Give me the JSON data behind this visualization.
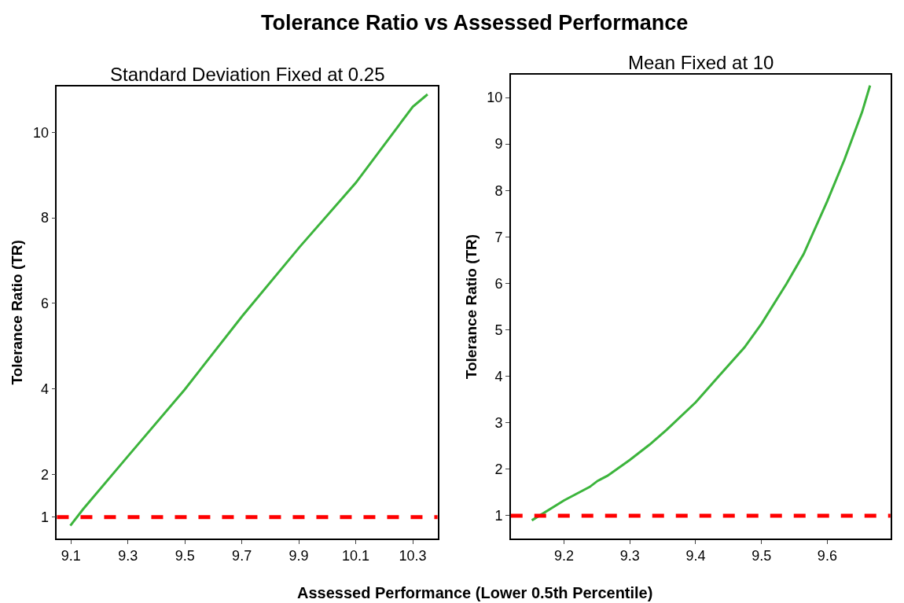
{
  "chart_data": [
    {
      "type": "line",
      "title": "Tolerance Ratio vs Assessed Performance",
      "subtitle": "Standard Deviation Fixed at 0.25",
      "xlabel": "Assessed Performance (Lower 0.5th Percentile)",
      "ylabel": "Tolerance Ratio (TR)",
      "x": [
        9.098,
        9.142,
        9.297,
        9.499,
        9.701,
        9.903,
        10.1,
        10.3,
        10.352
      ],
      "series": [
        {
          "color": "#3cb43c",
          "values": [
            0.8,
            1.18,
            2.4,
            3.98,
            5.7,
            7.32,
            8.82,
            10.6,
            10.89
          ]
        }
      ],
      "xlim": [
        9.051,
        10.387
      ],
      "xticks": [
        9.1,
        9.3,
        9.5,
        9.7,
        9.9,
        10.1,
        10.3
      ],
      "ylim": [
        0.5,
        11.08
      ],
      "yticks": [
        1,
        2,
        4,
        6,
        8,
        10
      ],
      "ref_lines": [
        {
          "axis": "y",
          "value": 1,
          "color": "#ff0000",
          "line_style": "dashed"
        }
      ],
      "marker": "none",
      "line_style": "solid"
    },
    {
      "type": "line",
      "subtitle": "Mean Fixed at 10",
      "ylabel": "Tolerance Ratio (TR)",
      "x": [
        9.151,
        9.2,
        9.239,
        9.251,
        9.266,
        9.3,
        9.33,
        9.356,
        9.4,
        9.433,
        9.474,
        9.5,
        9.538,
        9.564,
        9.6,
        9.626,
        9.653,
        9.665
      ],
      "series": [
        {
          "color": "#3cb43c",
          "values": [
            0.9,
            1.33,
            1.62,
            1.75,
            1.86,
            2.2,
            2.53,
            2.85,
            3.44,
            3.97,
            4.62,
            5.13,
            5.99,
            6.63,
            7.77,
            8.66,
            9.69,
            10.26
          ]
        }
      ],
      "xlim": [
        9.119,
        9.696
      ],
      "xticks": [
        9.2,
        9.3,
        9.4,
        9.5,
        9.6
      ],
      "ylim": [
        0.51,
        10.49
      ],
      "yticks": [
        1,
        2,
        3,
        4,
        5,
        6,
        7,
        8,
        9,
        10
      ],
      "ref_lines": [
        {
          "axis": "y",
          "value": 1,
          "color": "#ff0000",
          "line_style": "dashed"
        }
      ],
      "marker": "none",
      "line_style": "solid"
    }
  ]
}
